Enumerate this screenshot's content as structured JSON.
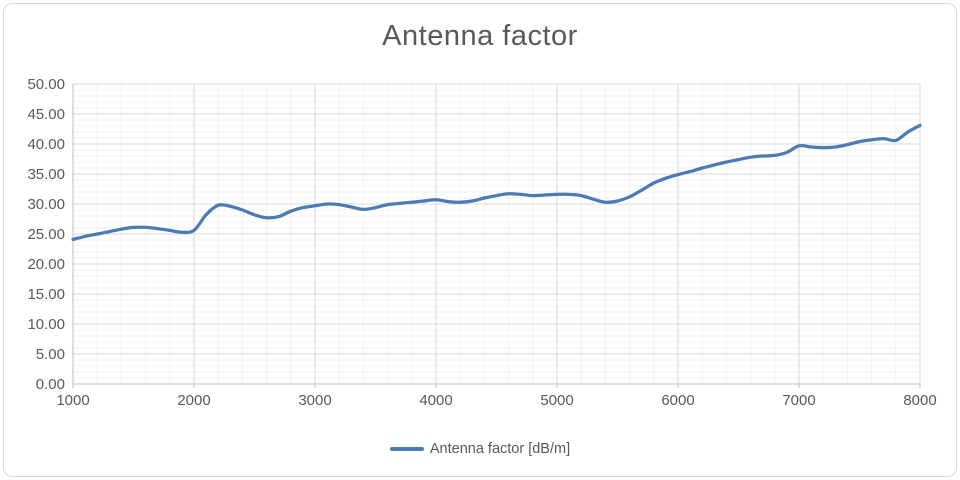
{
  "chart_data": {
    "type": "line",
    "title": "Antenna factor",
    "legend": "Antenna factor [dB/m]",
    "legend_position": "bottom",
    "smooth": true,
    "grid": "major+minor",
    "xlim": [
      1000,
      8000
    ],
    "ylim": [
      0,
      50
    ],
    "x_major_step": 1000,
    "x_minor_step": 200,
    "y_major_step": 5,
    "y_minor_step": 1,
    "y_tick_decimals": 2,
    "x_tick_labels": [
      "1000",
      "2000",
      "3000",
      "4000",
      "5000",
      "6000",
      "7000",
      "8000"
    ],
    "y_tick_labels": [
      "0.00",
      "5.00",
      "10.00",
      "15.00",
      "20.00",
      "25.00",
      "30.00",
      "35.00",
      "40.00",
      "45.00",
      "50.00"
    ],
    "x": [
      1000,
      1100,
      1200,
      1300,
      1400,
      1500,
      1600,
      1700,
      1800,
      1900,
      2000,
      2100,
      2200,
      2300,
      2400,
      2500,
      2600,
      2700,
      2800,
      2900,
      3000,
      3100,
      3200,
      3300,
      3400,
      3500,
      3600,
      3700,
      3800,
      3900,
      4000,
      4100,
      4200,
      4300,
      4400,
      4500,
      4600,
      4700,
      4800,
      4900,
      5000,
      5100,
      5200,
      5300,
      5400,
      5500,
      5600,
      5700,
      5800,
      5900,
      6000,
      6100,
      6200,
      6300,
      6400,
      6500,
      6600,
      6700,
      6800,
      6900,
      7000,
      7100,
      7200,
      7300,
      7400,
      7500,
      7600,
      7700,
      7800,
      7900,
      8000
    ],
    "series": [
      {
        "name": "Antenna factor [dB/m]",
        "values": [
          24.1,
          24.6,
          25.0,
          25.4,
          25.8,
          26.1,
          26.1,
          25.9,
          25.6,
          25.3,
          25.6,
          28.2,
          29.8,
          29.6,
          29.0,
          28.2,
          27.7,
          27.9,
          28.8,
          29.4,
          29.7,
          30.0,
          29.9,
          29.5,
          29.1,
          29.4,
          29.9,
          30.1,
          30.3,
          30.5,
          30.7,
          30.4,
          30.3,
          30.5,
          31.0,
          31.4,
          31.7,
          31.6,
          31.4,
          31.5,
          31.6,
          31.6,
          31.4,
          30.8,
          30.3,
          30.5,
          31.2,
          32.3,
          33.5,
          34.3,
          34.9,
          35.4,
          36.0,
          36.5,
          37.0,
          37.4,
          37.8,
          38.0,
          38.1,
          38.6,
          39.7,
          39.5,
          39.4,
          39.5,
          39.9,
          40.4,
          40.7,
          40.9,
          40.6,
          42.0,
          43.1
        ]
      }
    ]
  },
  "colors": {
    "series_line": "#4a7bb5",
    "text": "#595959",
    "grid_major": "#d9d9d9",
    "grid_minor": "#f2f2f2",
    "axis_line": "#bfbfbf",
    "frame_border": "#d8d8d8",
    "background": "#ffffff"
  }
}
